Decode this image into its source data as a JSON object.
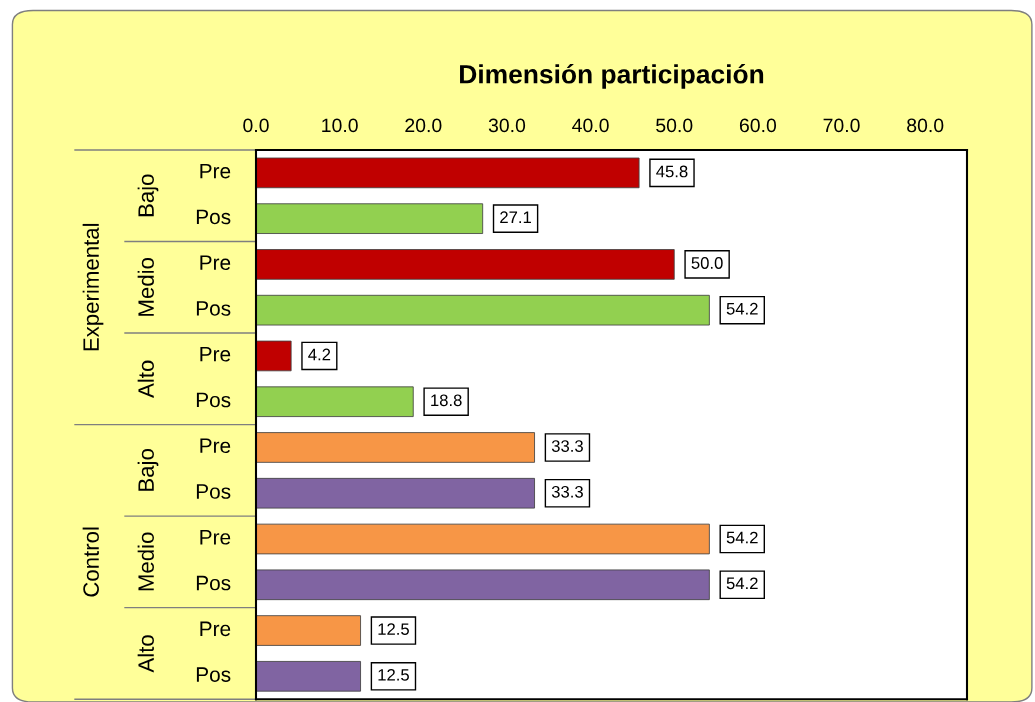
{
  "chart_data": {
    "type": "bar",
    "orientation": "horizontal",
    "title": "Dimensión participación",
    "categories": [
      "Pre",
      "Pos",
      "Pre",
      "Pos",
      "Pre",
      "Pos",
      "Pre",
      "Pos",
      "Pre",
      "Pos",
      "Pre",
      "Pos"
    ],
    "values": [
      45.8,
      27.1,
      50.0,
      54.2,
      4.2,
      18.8,
      33.3,
      33.3,
      54.2,
      54.2,
      12.5,
      12.5
    ],
    "colors": [
      "#c00000",
      "#92d050",
      "#c00000",
      "#92d050",
      "#c00000",
      "#92d050",
      "#f79646",
      "#8064a2",
      "#f79646",
      "#8064a2",
      "#f79646",
      "#8064a2"
    ],
    "value_labels": [
      "45.8",
      "27.1",
      "50.0",
      "54.2",
      "4.2",
      "18.8",
      "33.3",
      "33.3",
      "54.2",
      "54.2",
      "12.5",
      "12.5"
    ],
    "annotations": [
      "Bajo",
      "Medio",
      "Alto",
      "Bajo",
      "Medio",
      "Alto",
      "Experimental",
      "Control"
    ],
    "xlim": [
      0,
      85
    ],
    "xticks": [
      {
        "value": 0,
        "label": "0.0"
      },
      {
        "value": 10,
        "label": "10.0"
      },
      {
        "value": 20,
        "label": "20.0"
      },
      {
        "value": 30,
        "label": "30.0"
      },
      {
        "value": 40,
        "label": "40.0"
      },
      {
        "value": 50,
        "label": "50.0"
      },
      {
        "value": 60,
        "label": "60.0"
      },
      {
        "value": 70,
        "label": "70.0"
      },
      {
        "value": 80,
        "label": "80.0"
      }
    ],
    "grid": false
  }
}
